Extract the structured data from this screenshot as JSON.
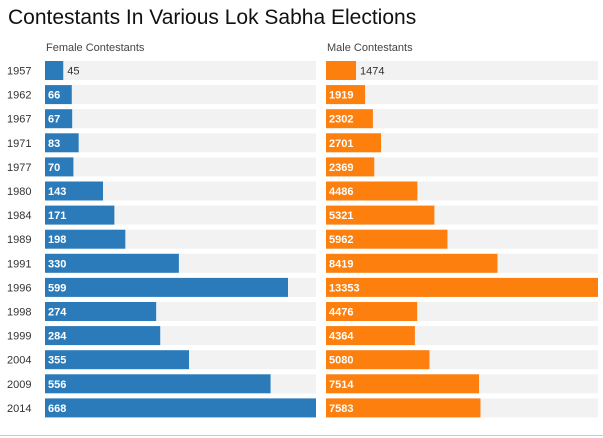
{
  "chart_data": {
    "type": "bar",
    "title": "Contestants In Various Lok Sabha Elections",
    "categories": [
      "1957",
      "1962",
      "1967",
      "1971",
      "1977",
      "1980",
      "1984",
      "1989",
      "1991",
      "1996",
      "1998",
      "1999",
      "2004",
      "2009",
      "2014"
    ],
    "series": [
      {
        "name": "Female Contestants",
        "color": "#2b7bba",
        "values": [
          45,
          66,
          67,
          83,
          70,
          143,
          171,
          198,
          330,
          599,
          274,
          284,
          355,
          556,
          668
        ]
      },
      {
        "name": "Male Contestants",
        "color": "#fd7f0e",
        "values": [
          1474,
          1919,
          2302,
          2701,
          2369,
          4486,
          5321,
          5962,
          8419,
          13353,
          4476,
          4364,
          5080,
          7514,
          7583
        ]
      }
    ],
    "xlim_female": [
      0,
      668
    ],
    "xlim_male": [
      0,
      13353
    ],
    "background_color": "#f2f2f2"
  }
}
